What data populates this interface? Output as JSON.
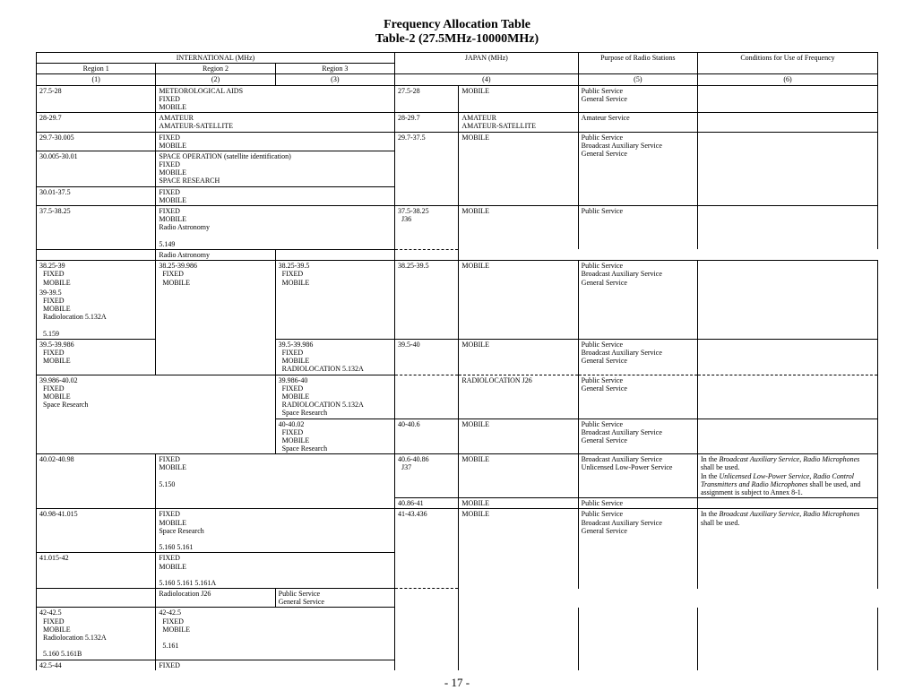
{
  "title": "Frequency Allocation Table",
  "subtitle": "Table-2 (27.5MHz-10000MHz)",
  "pagenum": "- 17 -",
  "hdr": {
    "intl": "INTERNATIONAL (MHz)",
    "r1": "Region 1",
    "r2": "Region 2",
    "r3": "Region 3",
    "c1": "(1)",
    "c2": "(2)",
    "c3": "(3)",
    "japan": "JAPAN (MHz)",
    "c4": "(4)",
    "purpose": "Purpose of Radio Stations",
    "c5": "(5)",
    "cond": "Conditions for Use of Frequency",
    "c6": "(6)"
  },
  "r": {
    "a1": "27.5-28",
    "a2": "METEOROLOGICAL AIDS\nFIXED\nMOBILE",
    "a4a": "27.5-28",
    "a4b": "MOBILE",
    "a5": "Public Service\nGeneral Service",
    "b1": "28-29.7",
    "b2": "AMATEUR\nAMATEUR-SATELLITE",
    "b4a": "28-29.7",
    "b4b": "AMATEUR\nAMATEUR-SATELLITE",
    "b5": "Amateur Service",
    "c1": "29.7-30.005",
    "c2": "FIXED\nMOBILE",
    "c4a": "29.7-37.5",
    "c4b": "MOBILE",
    "c5": "Public Service\nBroadcast Auxiliary Service\nGeneral Service",
    "d1": "30.005-30.01",
    "d2": "SPACE OPERATION (satellite identification)\nFIXED\nMOBILE\nSPACE RESEARCH",
    "e1": "30.01-37.5",
    "e2": "FIXED\nMOBILE",
    "f1": "37.5-38.25",
    "f2": "FIXED\nMOBILE\nRadio Astronomy\n\n5.149",
    "f4a": "37.5-38.25\n  J36",
    "f4b": "MOBILE",
    "f4b2": "Radio Astronomy",
    "f5": "Public Service",
    "g1a": "38.25-39\n  FIXED\n  MOBILE",
    "g1b": "39-39.5\n  FIXED\n  MOBILE\n  Radiolocation   5.132A\n\n  5.159",
    "g2": "38.25-39.986\n  FIXED\n  MOBILE",
    "g3": "38.25-39.5\n  FIXED\n  MOBILE",
    "g4a": "38.25-39.5",
    "g4b": "MOBILE",
    "g5": "Public Service\nBroadcast Auxiliary Service\nGeneral Service",
    "h1": "39.5-39.986\n  FIXED\n  MOBILE",
    "h3": "39.5-39.986\n  FIXED\n  MOBILE\n  RADIOLOCATION   5.132A",
    "h4a": "39.5-40",
    "h4b": "MOBILE",
    "h4b2": "RADIOLOCATION   J26",
    "h5": "Public Service\nBroadcast Auxiliary Service\nGeneral Service",
    "h5b": "Public Service\nGeneral Service",
    "i1": "39.986-40.02\n  FIXED\n  MOBILE\n  Space Research",
    "i3": "39.986-40\n  FIXED\n  MOBILE\n  RADIOLOCATION   5.132A\n  Space Research",
    "i3b": "40-40.02\n  FIXED\n  MOBILE\n  Space Research",
    "i4a": "40-40.6",
    "i4b": "MOBILE",
    "i5": "Public Service\nBroadcast Auxiliary Service\nGeneral Service",
    "j1": "40.02-40.98",
    "j2": "FIXED\nMOBILE\n\n5.150",
    "j4a": "40.6-40.86\n  J37",
    "j4b": "MOBILE",
    "j5": "Broadcast Auxiliary Service\nUnlicensed Low-Power Service",
    "j6": "In the Broadcast Auxiliary Service, Radio Microphones shall be used.\nIn the Unlicensed Low-Power Service, Radio Control Transmitters and Radio Microphones shall be used, and assignment is subject to Annex 8-1.",
    "k4a": "40.86-41",
    "k4b": "MOBILE",
    "k5": "Public Service",
    "l1": "40.98-41.015",
    "l2": "FIXED\nMOBILE\nSpace Research\n\n5.160   5.161",
    "l4a": "41-43.436",
    "l4b": "MOBILE",
    "l4b2": "Radiolocation   J26",
    "l5": "Public Service\nBroadcast Auxiliary Service\nGeneral Service",
    "l5b": "Public Service\nGeneral Service",
    "l6": "In the Broadcast Auxiliary Service, Radio Microphones shall be used.",
    "m1": "41.015-42",
    "m2": "FIXED\nMOBILE\n\n5.160   5.161   5.161A",
    "n1a": "42-42.5\n  FIXED\n  MOBILE\n  Radiolocation   5.132A\n\n  5.160   5.161B",
    "n2": "42-42.5\n  FIXED\n  MOBILE\n\n  5.161",
    "o1": "42.5-44",
    "o2": "FIXED"
  }
}
